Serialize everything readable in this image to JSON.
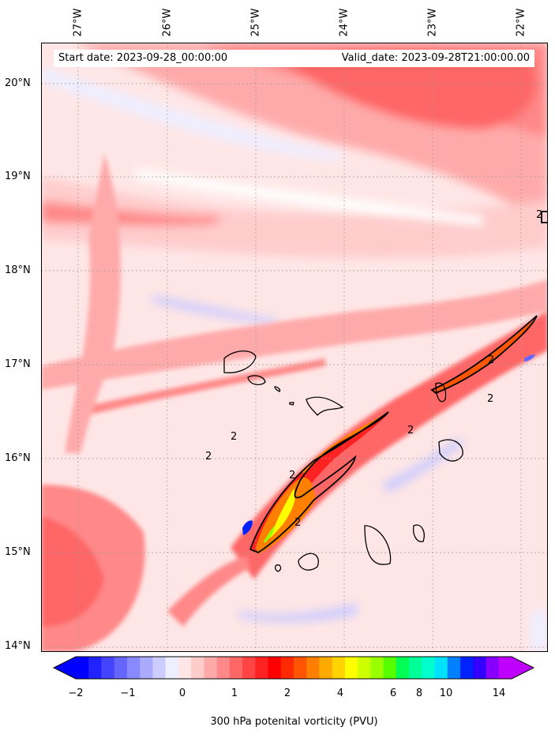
{
  "map": {
    "start_date": "Start date: 2023-09-28_00:00:00",
    "valid_date": "Valid_date: 2023-09-28T21:00:00.00",
    "longitude_labels": [
      "27°W",
      "26°W",
      "25°W",
      "24°W",
      "23°W",
      "22°W"
    ],
    "latitude_labels": [
      "20°N",
      "19°N",
      "18°N",
      "17°N",
      "16°N",
      "15°N",
      "14°N"
    ],
    "contour_label": "2",
    "field": "300 hPa potential vorticity",
    "units": "PVU"
  },
  "colorbar": {
    "label": "300 hPa potenital vorticity (PVU)",
    "tick_labels": [
      "−2",
      "−1",
      "0",
      "1",
      "2",
      "4",
      "6",
      "8",
      "10",
      "14"
    ],
    "colors": [
      "#0000ff",
      "#2222ff",
      "#4444ff",
      "#6666ff",
      "#8888ff",
      "#aaaaff",
      "#ccccff",
      "#eeeeff",
      "#ffe6e6",
      "#ffcccc",
      "#ffaaaa",
      "#ff8888",
      "#ff6666",
      "#ff4444",
      "#ff2222",
      "#ff0000",
      "#ff2a00",
      "#ff5500",
      "#ff8000",
      "#ffaa00",
      "#ffd400",
      "#ffff00",
      "#ccff00",
      "#99ff00",
      "#55ff00",
      "#00ff55",
      "#00ff99",
      "#00ffcc",
      "#00e0ff",
      "#0080ff",
      "#0022ff",
      "#3300ff",
      "#8800ff",
      "#c000ff"
    ],
    "extend_low_color": "#0000ff",
    "extend_high_color": "#c000ff"
  }
}
